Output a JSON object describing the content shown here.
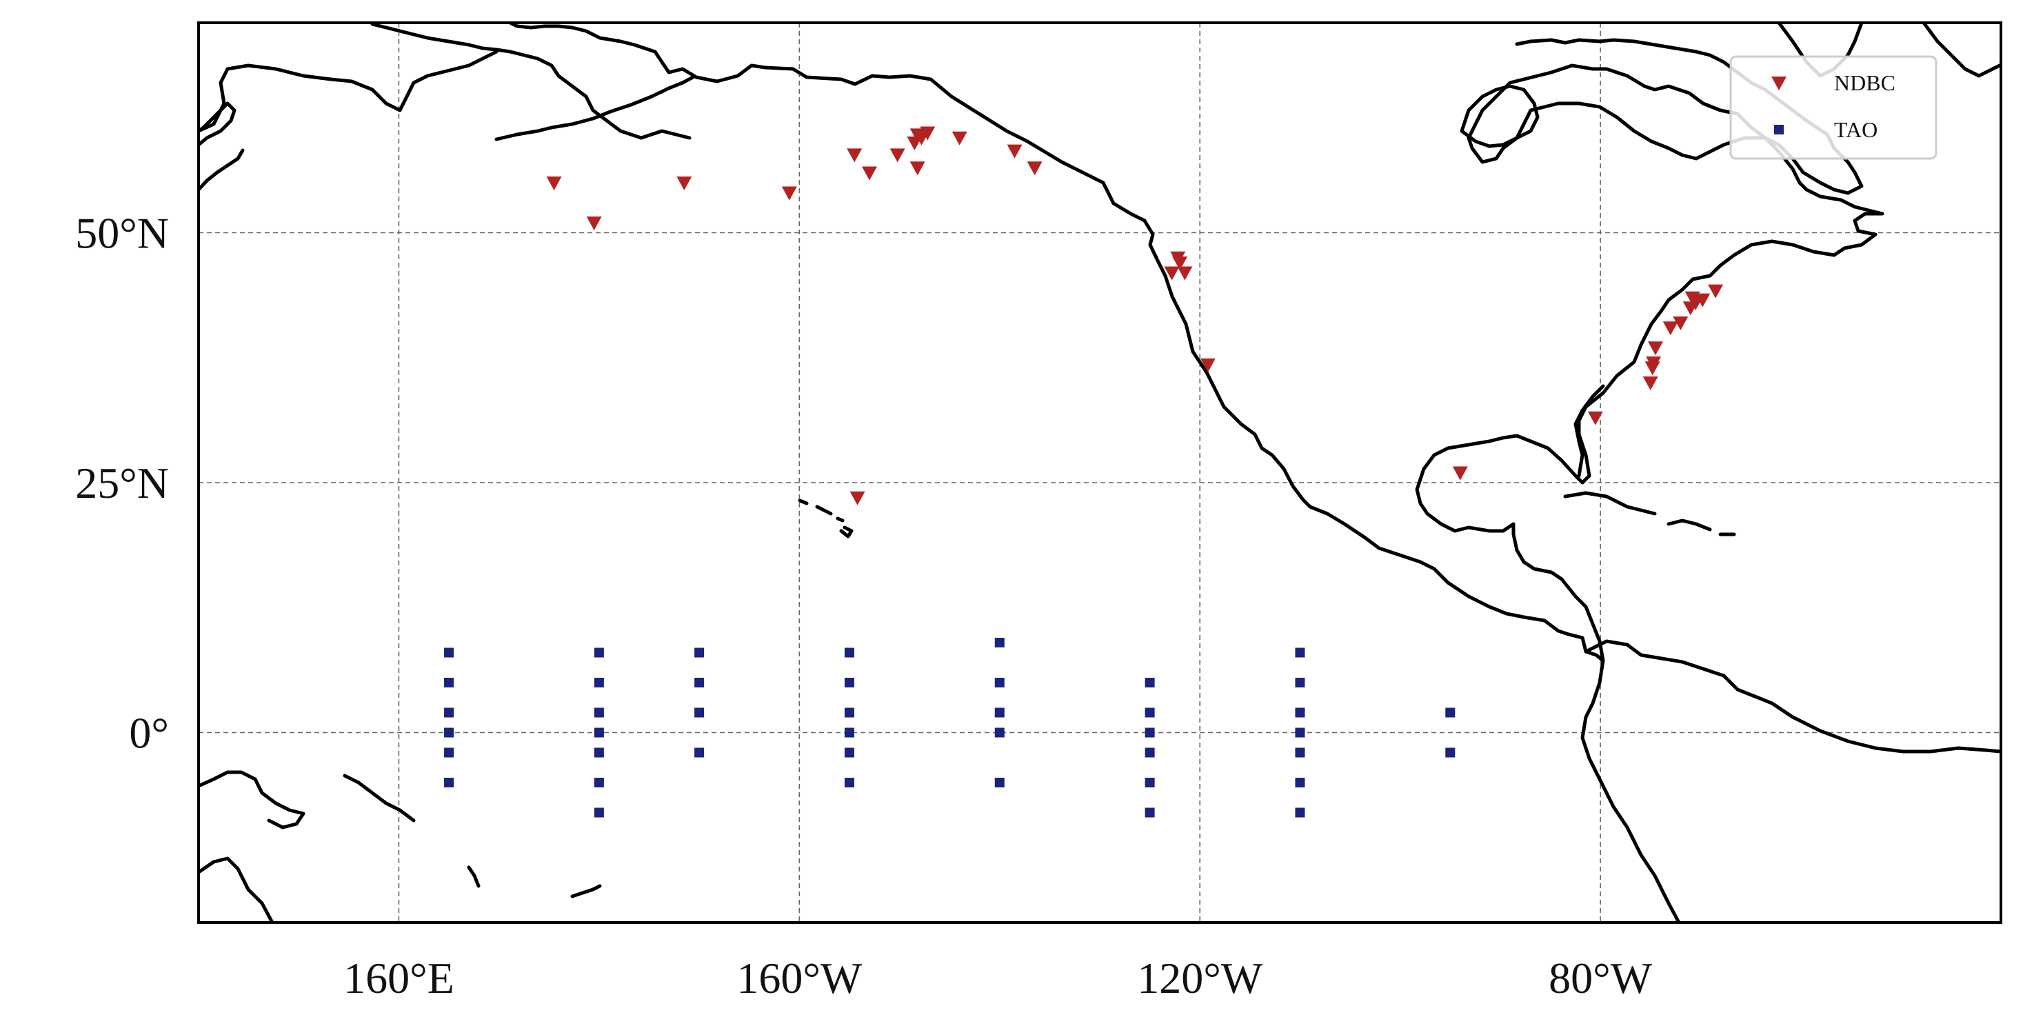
{
  "chart_data": {
    "type": "scatter",
    "projection": "equirectangular",
    "xlim": [
      140,
      320
    ],
    "ylim": [
      -19,
      71
    ],
    "x_ticks": [
      {
        "lon": 160,
        "label": "160°E"
      },
      {
        "lon": 200,
        "label": "160°W"
      },
      {
        "lon": 240,
        "label": "120°W"
      },
      {
        "lon": 280,
        "label": "80°W"
      }
    ],
    "y_ticks": [
      {
        "lat": 50,
        "label": "50°N"
      },
      {
        "lat": 25,
        "label": "25°N"
      },
      {
        "lat": 0,
        "label": "0°"
      }
    ],
    "grid": true,
    "legend_position": "top-right",
    "series": [
      {
        "name": "NDBC",
        "marker": "triangle-down",
        "color": "#b22222",
        "points": [
          [
            175.5,
            55.0
          ],
          [
            179.5,
            51.0
          ],
          [
            188.5,
            55.0
          ],
          [
            199.0,
            54.0
          ],
          [
            205.8,
            23.5
          ],
          [
            207.0,
            56.0
          ],
          [
            205.5,
            57.8
          ],
          [
            209.8,
            57.8
          ],
          [
            211.8,
            59.8
          ],
          [
            211.5,
            59.0
          ],
          [
            212.2,
            59.5
          ],
          [
            212.8,
            60.0
          ],
          [
            211.8,
            56.5
          ],
          [
            216.0,
            59.5
          ],
          [
            221.5,
            58.2
          ],
          [
            223.5,
            56.5
          ],
          [
            237.2,
            46.0
          ],
          [
            237.8,
            47.5
          ],
          [
            238.0,
            47.0
          ],
          [
            238.5,
            46.0
          ],
          [
            240.8,
            36.8
          ],
          [
            266.0,
            26.0
          ],
          [
            279.5,
            31.5
          ],
          [
            285.0,
            35.0
          ],
          [
            285.2,
            36.5
          ],
          [
            285.3,
            37.0
          ],
          [
            285.5,
            38.5
          ],
          [
            287.0,
            40.5
          ],
          [
            288.0,
            41.0
          ],
          [
            289.0,
            42.5
          ],
          [
            289.5,
            43.0
          ],
          [
            289.2,
            43.5
          ],
          [
            290.2,
            43.3
          ],
          [
            291.5,
            44.2
          ]
        ]
      },
      {
        "name": "TAO",
        "marker": "square",
        "color": "#1a237e",
        "points": [
          [
            165,
            8
          ],
          [
            165,
            5
          ],
          [
            165,
            2
          ],
          [
            165,
            0
          ],
          [
            165,
            -2
          ],
          [
            165,
            -5
          ],
          [
            180,
            8
          ],
          [
            180,
            5
          ],
          [
            180,
            2
          ],
          [
            180,
            0
          ],
          [
            180,
            -2
          ],
          [
            180,
            -5
          ],
          [
            180,
            -8
          ],
          [
            190,
            8
          ],
          [
            190,
            5
          ],
          [
            190,
            2
          ],
          [
            190,
            -2
          ],
          [
            205,
            8
          ],
          [
            205,
            5
          ],
          [
            205,
            2
          ],
          [
            205,
            0
          ],
          [
            205,
            -2
          ],
          [
            205,
            -5
          ],
          [
            220,
            9
          ],
          [
            220,
            5
          ],
          [
            220,
            2
          ],
          [
            220,
            0
          ],
          [
            220,
            -5
          ],
          [
            235,
            5
          ],
          [
            235,
            2
          ],
          [
            235,
            0
          ],
          [
            235,
            -2
          ],
          [
            235,
            -5
          ],
          [
            235,
            -8
          ],
          [
            250,
            8
          ],
          [
            250,
            5
          ],
          [
            250,
            2
          ],
          [
            250,
            0
          ],
          [
            250,
            -2
          ],
          [
            250,
            -5
          ],
          [
            250,
            -8
          ],
          [
            265,
            2
          ],
          [
            265,
            -2
          ]
        ]
      }
    ]
  }
}
